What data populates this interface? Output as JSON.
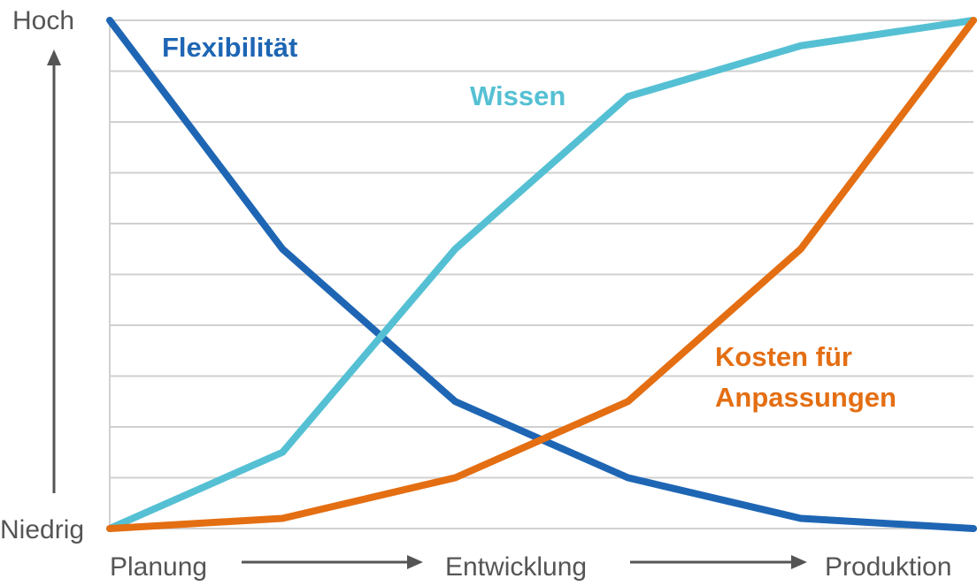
{
  "chart_data": {
    "type": "line",
    "y_axis": {
      "top_label": "Hoch",
      "bottom_label": "Niedrig",
      "ylim": [
        0,
        10
      ],
      "grid_lines": 10
    },
    "x_axis": {
      "labels": [
        "Planung",
        "Entwicklung",
        "Produktion"
      ],
      "xlim": [
        0,
        5
      ]
    },
    "x": [
      0,
      1,
      2,
      3,
      4,
      5
    ],
    "series": [
      {
        "name": "Flexibilität",
        "color": "#1e66b4",
        "values": [
          10,
          5.5,
          2.5,
          1.0,
          0.2,
          0.0
        ]
      },
      {
        "name": "Wissen",
        "color": "#55c0d3",
        "values": [
          0,
          1.5,
          5.5,
          8.5,
          9.5,
          10
        ]
      },
      {
        "name": "Kosten für Anpassungen",
        "label_lines": [
          "Kosten für",
          "Anpassungen"
        ],
        "color": "#e46e12",
        "values": [
          0,
          0.2,
          1.0,
          2.5,
          5.5,
          10
        ]
      }
    ],
    "gridlines_color": "#d0d0d0",
    "axis_arrow_color": "#555555"
  }
}
